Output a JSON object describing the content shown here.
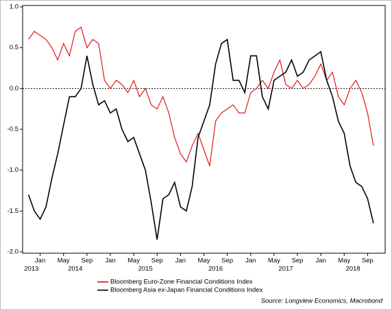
{
  "chart_data": {
    "type": "line",
    "x": [
      "2013-11",
      "2013-12",
      "2014-01",
      "2014-02",
      "2014-03",
      "2014-04",
      "2014-05",
      "2014-06",
      "2014-07",
      "2014-08",
      "2014-09",
      "2014-10",
      "2014-11",
      "2014-12",
      "2015-01",
      "2015-02",
      "2015-03",
      "2015-04",
      "2015-05",
      "2015-06",
      "2015-07",
      "2015-08",
      "2015-09",
      "2015-10",
      "2015-11",
      "2015-12",
      "2016-01",
      "2016-02",
      "2016-03",
      "2016-04",
      "2016-05",
      "2016-06",
      "2016-07",
      "2016-08",
      "2016-09",
      "2016-10",
      "2016-11",
      "2016-12",
      "2017-01",
      "2017-02",
      "2017-03",
      "2017-04",
      "2017-05",
      "2017-06",
      "2017-07",
      "2017-08",
      "2017-09",
      "2017-10",
      "2017-11",
      "2017-12",
      "2018-01",
      "2018-02",
      "2018-03",
      "2018-04",
      "2018-05",
      "2018-06",
      "2018-07",
      "2018-08",
      "2018-09",
      "2018-10"
    ],
    "series": [
      {
        "name": "Bloomberg Euro-Zone Financial Conditions Index",
        "color": "#e00000",
        "values": [
          0.6,
          0.7,
          0.65,
          0.6,
          0.5,
          0.35,
          0.55,
          0.4,
          0.7,
          0.75,
          0.5,
          0.6,
          0.55,
          0.1,
          0.0,
          0.1,
          0.05,
          -0.05,
          0.1,
          -0.1,
          0.0,
          -0.2,
          -0.25,
          -0.1,
          -0.3,
          -0.6,
          -0.8,
          -0.9,
          -0.7,
          -0.55,
          -0.75,
          -0.95,
          -0.4,
          -0.3,
          -0.25,
          -0.2,
          -0.3,
          -0.3,
          -0.05,
          0.0,
          0.1,
          0.0,
          0.2,
          0.35,
          0.05,
          0.0,
          0.1,
          0.0,
          0.05,
          0.15,
          0.3,
          0.1,
          0.2,
          -0.1,
          -0.2,
          0.0,
          0.1,
          -0.05,
          -0.3,
          -0.7
        ]
      },
      {
        "name": "Bloomberg Asia ex-Japan Financial Conditions Index",
        "color": "#000000",
        "values": [
          -1.3,
          -1.5,
          -1.6,
          -1.45,
          -1.1,
          -0.8,
          -0.45,
          -0.1,
          -0.1,
          0.0,
          0.4,
          0.05,
          -0.2,
          -0.15,
          -0.3,
          -0.25,
          -0.5,
          -0.65,
          -0.6,
          -0.8,
          -1.0,
          -1.4,
          -1.85,
          -1.35,
          -1.3,
          -1.15,
          -1.45,
          -1.5,
          -1.2,
          -0.6,
          -0.4,
          -0.2,
          0.3,
          0.55,
          0.6,
          0.1,
          0.1,
          -0.05,
          0.4,
          0.4,
          -0.1,
          -0.25,
          0.1,
          0.15,
          0.2,
          0.35,
          0.15,
          0.2,
          0.35,
          0.4,
          0.45,
          0.1,
          -0.1,
          -0.4,
          -0.55,
          -0.95,
          -1.15,
          -1.2,
          -1.35,
          -1.65
        ]
      }
    ],
    "xlim": [
      "2013-10",
      "2018-12"
    ],
    "xticks": [
      {
        "value": "2014-01",
        "label": "Jan"
      },
      {
        "value": "2014-05",
        "label": "May"
      },
      {
        "value": "2014-09",
        "label": "Sep"
      },
      {
        "value": "2015-01",
        "label": "Jan"
      },
      {
        "value": "2015-05",
        "label": "May"
      },
      {
        "value": "2015-09",
        "label": "Sep"
      },
      {
        "value": "2016-01",
        "label": "Jan"
      },
      {
        "value": "2016-05",
        "label": "May"
      },
      {
        "value": "2016-09",
        "label": "Sep"
      },
      {
        "value": "2017-01",
        "label": "Jan"
      },
      {
        "value": "2017-05",
        "label": "May"
      },
      {
        "value": "2017-09",
        "label": "Sep"
      },
      {
        "value": "2018-01",
        "label": "Jan"
      },
      {
        "value": "2018-05",
        "label": "May"
      },
      {
        "value": "2018-09",
        "label": "Sep"
      }
    ],
    "x_year_labels": [
      2013,
      2014,
      2015,
      2016,
      2017,
      2018
    ],
    "ylim": [
      -2.0,
      1.0
    ],
    "yticks": [
      {
        "value": 1.0,
        "label": "1.0"
      },
      0.5,
      {
        "value": 0.0,
        "label": "0.0"
      },
      -0.5,
      {
        "value": -1.0,
        "label": "-1.0"
      },
      -1.5,
      {
        "value": -2.0,
        "label": "-2.0"
      }
    ],
    "hline": 0,
    "legend": "bottom",
    "source": "Source: Longview Economics, Macrobond"
  }
}
